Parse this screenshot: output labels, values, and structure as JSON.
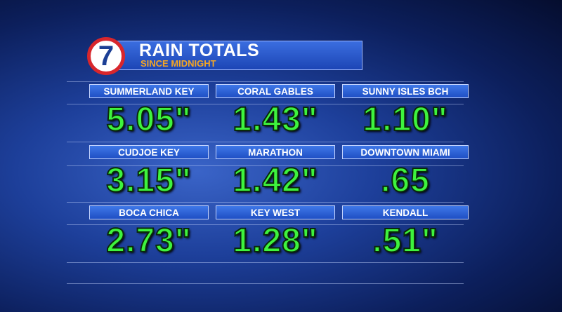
{
  "header": {
    "logo": "7",
    "title": "RAIN TOTALS",
    "subtitle": "SINCE MIDNIGHT"
  },
  "cells": [
    {
      "label": "SUMMERLAND KEY",
      "value": "5.05\""
    },
    {
      "label": "CORAL GABLES",
      "value": "1.43\""
    },
    {
      "label": "SUNNY ISLES BCH",
      "value": "1.10\""
    },
    {
      "label": "CUDJOE KEY",
      "value": "3.15\""
    },
    {
      "label": "MARATHON",
      "value": "1.42\""
    },
    {
      "label": "DOWNTOWN MIAMI",
      "value": ".65"
    },
    {
      "label": "BOCA CHICA",
      "value": "2.73\""
    },
    {
      "label": "KEY WEST",
      "value": "1.28\""
    },
    {
      "label": "KENDALL",
      "value": ".51\""
    }
  ]
}
